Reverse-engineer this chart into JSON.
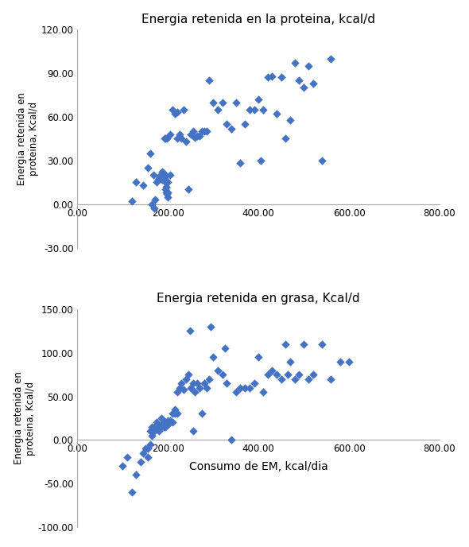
{
  "plot1": {
    "title": "Energia retenida en la proteina, kcal/d",
    "ylabel": "Energia retenida en\nproteina, Kcal/d",
    "xlim": [
      0,
      800
    ],
    "ylim": [
      -30,
      120
    ],
    "xticks": [
      0,
      200,
      400,
      600,
      800
    ],
    "yticks": [
      -30,
      0,
      30,
      60,
      90,
      120
    ],
    "x": [
      120,
      130,
      145,
      155,
      160,
      165,
      168,
      170,
      172,
      175,
      178,
      180,
      182,
      183,
      185,
      185,
      186,
      187,
      188,
      188,
      189,
      190,
      190,
      191,
      192,
      193,
      193,
      194,
      195,
      195,
      196,
      196,
      197,
      198,
      200,
      200,
      200,
      205,
      205,
      210,
      215,
      220,
      220,
      225,
      230,
      235,
      240,
      245,
      250,
      255,
      260,
      265,
      270,
      275,
      280,
      285,
      290,
      300,
      310,
      320,
      330,
      340,
      350,
      360,
      370,
      380,
      390,
      400,
      405,
      410,
      420,
      430,
      440,
      450,
      460,
      470,
      480,
      490,
      500,
      510,
      520,
      540,
      560
    ],
    "y": [
      2,
      15,
      13,
      25,
      35,
      0,
      20,
      -3,
      3,
      15,
      17,
      18,
      19,
      20,
      18,
      19,
      20,
      22,
      17,
      18,
      19,
      20,
      21,
      17,
      18,
      19,
      45,
      10,
      15,
      45,
      8,
      12,
      45,
      7,
      15,
      5,
      8,
      20,
      48,
      65,
      62,
      45,
      63,
      48,
      45,
      65,
      43,
      10,
      48,
      50,
      46,
      47,
      47,
      50,
      50,
      50,
      85,
      70,
      65,
      70,
      55,
      52,
      70,
      28,
      55,
      65,
      65,
      72,
      30,
      65,
      87,
      88,
      62,
      87,
      45,
      58,
      97,
      85,
      80,
      95,
      83,
      30,
      100
    ]
  },
  "plot2": {
    "title": "Energia retenida en grasa, Kcal/d",
    "ylabel": "Energia retenida en\nproteina, Kcal/d",
    "xlabel": "Consumo de EM, kcal/dia",
    "xlim": [
      0,
      800
    ],
    "ylim": [
      -100,
      150
    ],
    "xticks": [
      0,
      200,
      400,
      600,
      800
    ],
    "yticks": [
      -100,
      -50,
      0,
      50,
      100,
      150
    ],
    "x": [
      100,
      110,
      120,
      130,
      140,
      145,
      150,
      155,
      155,
      160,
      160,
      165,
      165,
      170,
      170,
      175,
      175,
      180,
      180,
      185,
      185,
      185,
      190,
      190,
      190,
      195,
      195,
      200,
      200,
      200,
      205,
      205,
      210,
      210,
      215,
      215,
      220,
      220,
      225,
      230,
      235,
      240,
      245,
      248,
      250,
      255,
      255,
      260,
      265,
      270,
      275,
      280,
      285,
      290,
      295,
      300,
      310,
      320,
      325,
      330,
      340,
      350,
      360,
      370,
      380,
      390,
      400,
      410,
      420,
      430,
      440,
      450,
      460,
      465,
      470,
      480,
      490,
      500,
      510,
      520,
      540,
      560,
      580,
      600
    ],
    "y": [
      -30,
      -20,
      -60,
      -40,
      -25,
      -15,
      -10,
      -10,
      -20,
      -5,
      10,
      5,
      15,
      10,
      15,
      12,
      20,
      10,
      15,
      15,
      17,
      25,
      15,
      17,
      20,
      15,
      20,
      18,
      20,
      22,
      20,
      22,
      20,
      30,
      30,
      35,
      30,
      55,
      60,
      65,
      58,
      70,
      75,
      125,
      60,
      65,
      10,
      55,
      65,
      60,
      30,
      65,
      60,
      70,
      130,
      95,
      80,
      75,
      105,
      65,
      0,
      55,
      60,
      60,
      60,
      65,
      95,
      55,
      75,
      80,
      75,
      70,
      110,
      75,
      90,
      70,
      75,
      110,
      70,
      75,
      110,
      70,
      90,
      90
    ]
  },
  "marker_color": "#4472C4",
  "marker_size": 28,
  "background_color": "#ffffff",
  "tick_label_fontsize": 8.5,
  "title_fontsize": 11,
  "label_fontsize": 8.5,
  "xlabel_fontsize": 10
}
